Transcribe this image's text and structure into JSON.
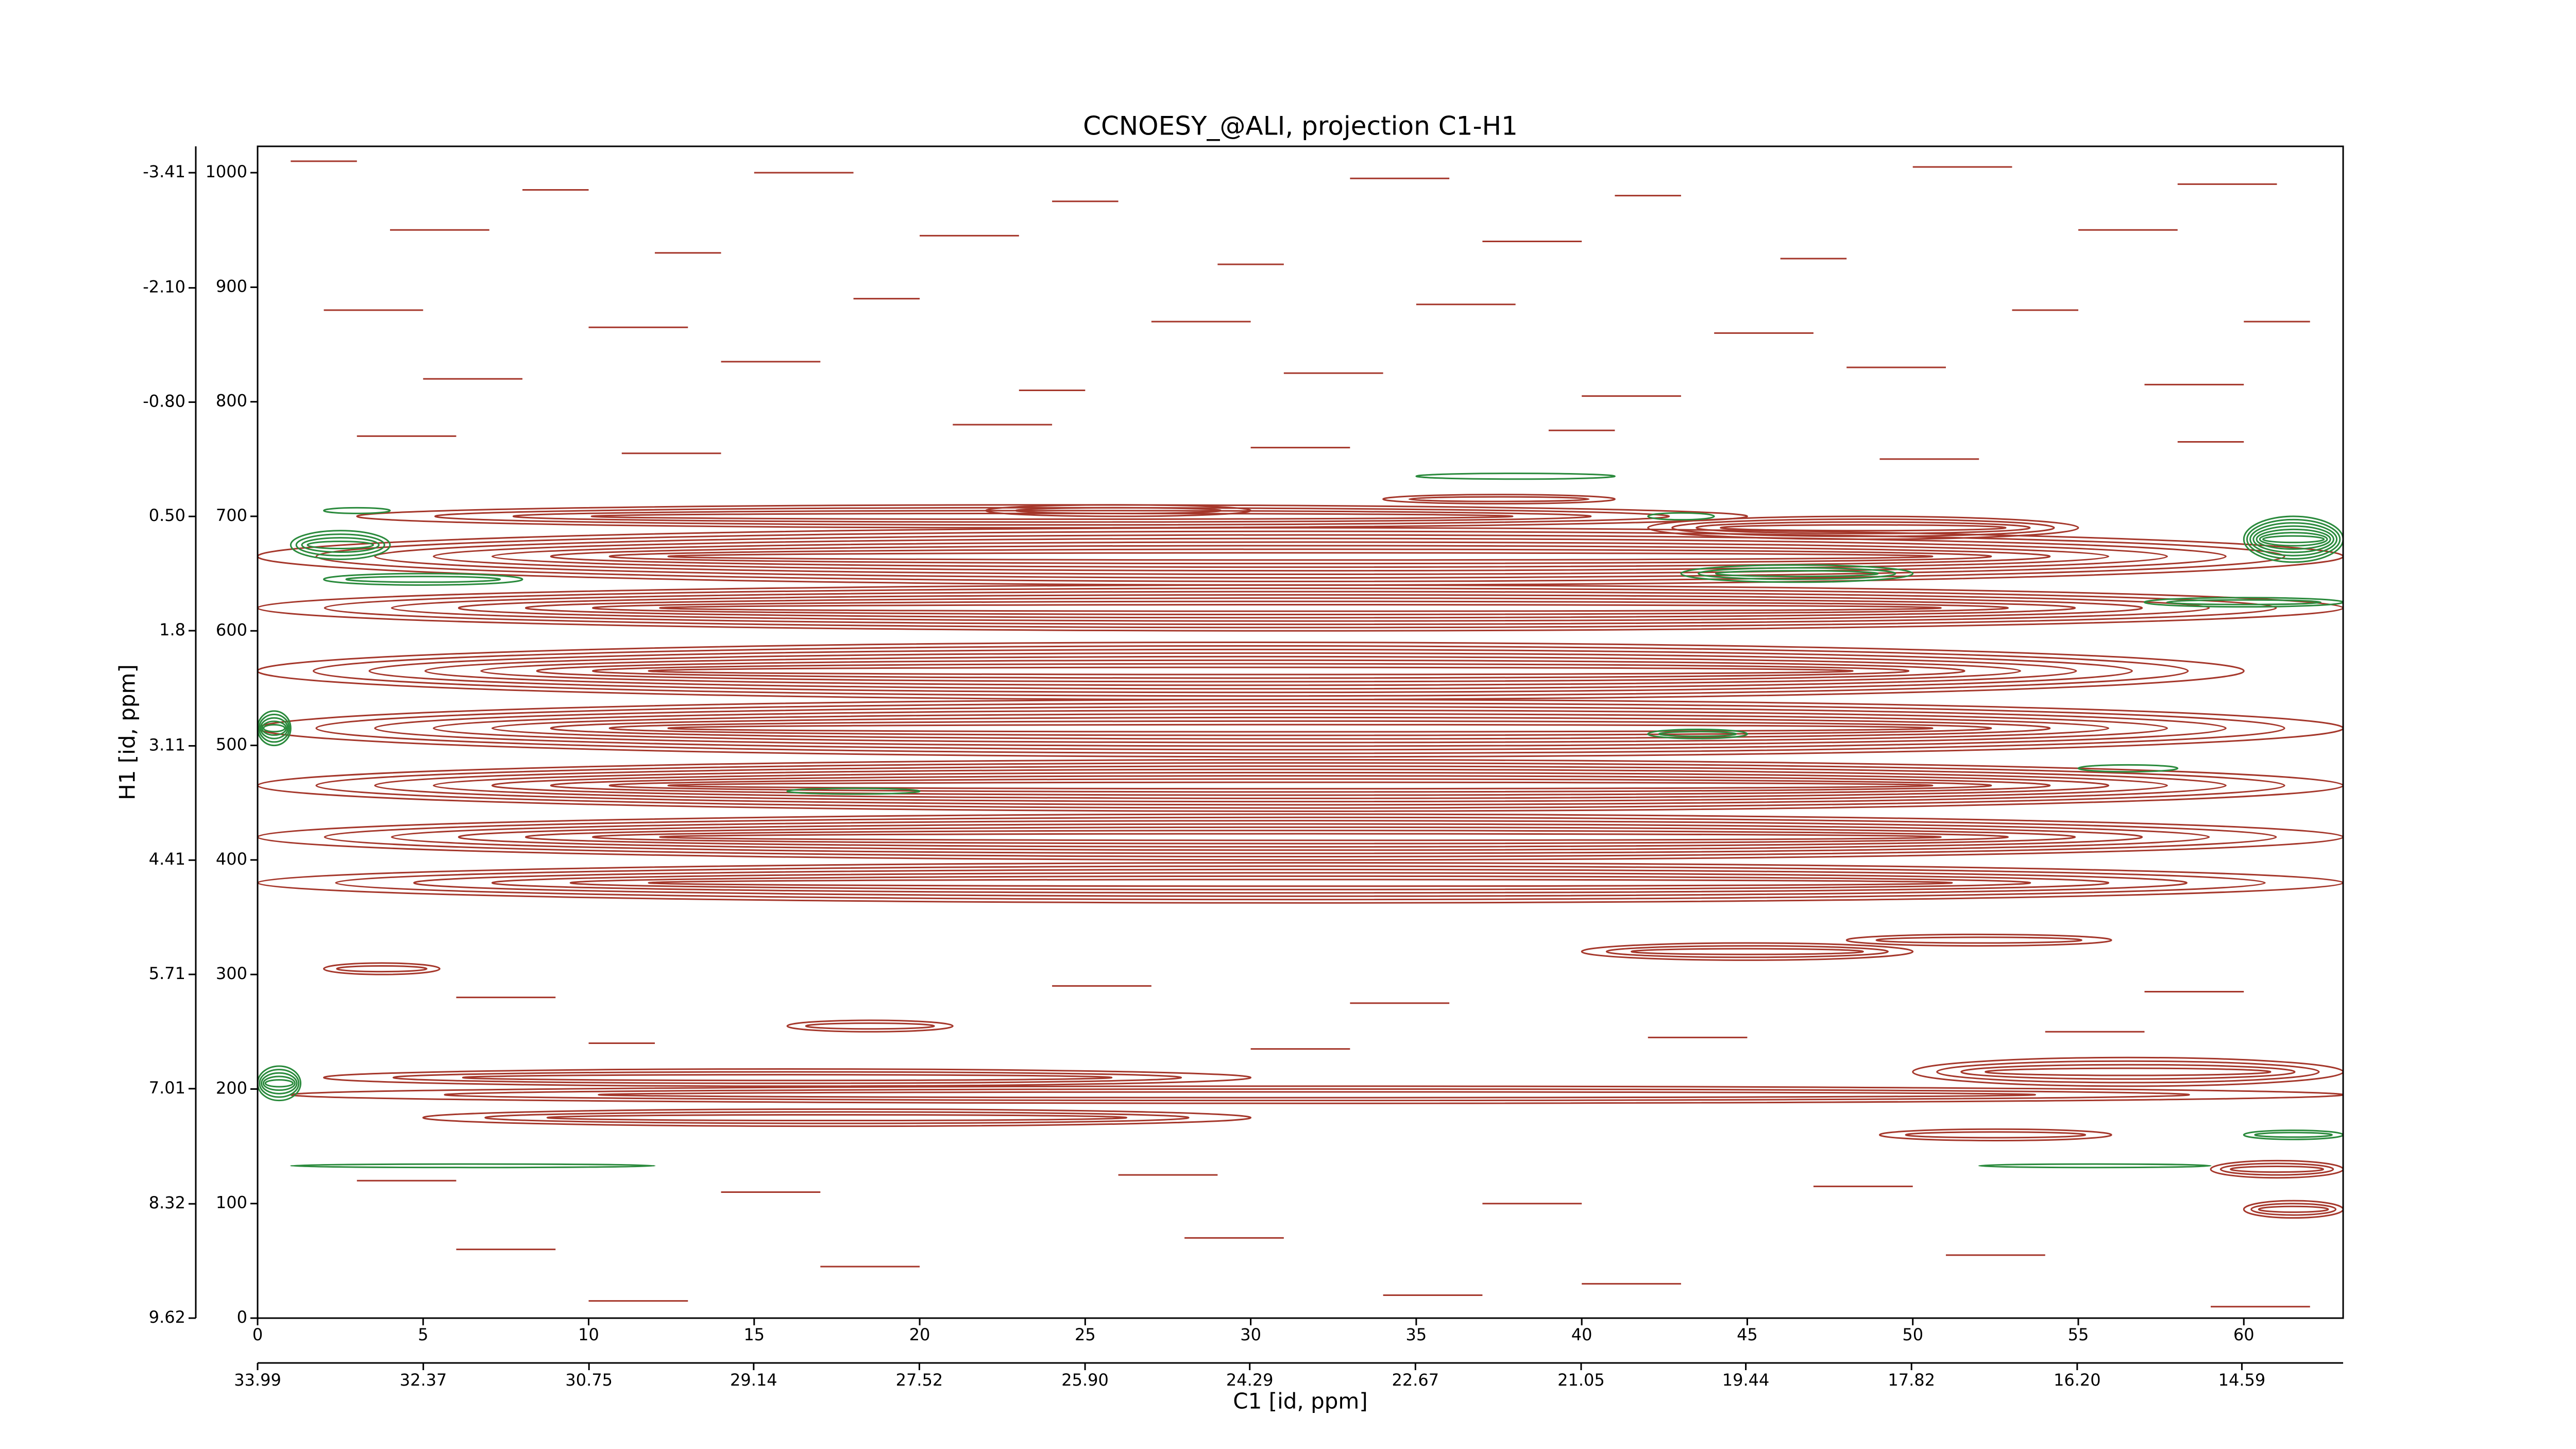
{
  "chart_data": {
    "type": "contour",
    "title": "CCNOESY_@ALI, projection C1-H1",
    "xlabel": "C1 [id, ppm]",
    "ylabel": "H1 [id, ppm]",
    "xlim": [
      0,
      63
    ],
    "xticks": [
      0,
      5,
      10,
      15,
      20,
      25,
      30,
      35,
      40,
      45,
      50,
      55,
      60
    ],
    "x2lim": [
      33.99,
      13.6
    ],
    "x2ticks": [
      33.99,
      32.37,
      30.75,
      29.14,
      27.52,
      {
        "value": 25.9,
        "label": "25.90"
      },
      24.29,
      22.67,
      21.05,
      19.44,
      17.82,
      {
        "value": 16.2,
        "label": "16.20"
      },
      14.59
    ],
    "ylim": [
      0,
      1023
    ],
    "yticks": [
      0,
      100,
      200,
      300,
      400,
      500,
      600,
      700,
      800,
      900,
      1000
    ],
    "y2lim": [
      9.62,
      -3.71
    ],
    "y2ticks": [
      9.62,
      8.32,
      7.01,
      5.71,
      4.41,
      3.11,
      1.8,
      {
        "value": 0.5,
        "label": "0.50"
      },
      {
        "value": -0.8,
        "label": "-0.80"
      },
      {
        "value": -2.1,
        "label": "-2.10"
      },
      -3.41
    ],
    "contours": [
      {
        "color": "#a5372b",
        "x0": [
          3,
          0,
          42,
          0,
          0,
          0,
          0,
          0,
          0,
          2,
          40,
          48,
          16,
          2,
          50,
          1,
          5,
          49,
          59,
          60,
          22,
          34,
          1,
          8,
          15,
          24,
          33,
          41,
          50,
          58,
          4,
          12,
          20,
          29,
          37,
          46,
          55,
          2,
          10,
          18,
          27,
          35,
          44,
          53,
          60,
          5,
          14,
          23,
          31,
          40,
          48,
          57,
          3,
          11,
          21,
          30,
          39,
          49,
          58,
          6,
          24,
          33,
          57,
          10,
          30,
          42,
          54,
          3,
          14,
          26,
          37,
          47,
          6,
          17,
          28,
          40,
          51,
          10,
          34,
          59
        ],
        "x1": [
          45,
          63,
          55,
          63,
          60,
          63,
          63,
          63,
          63,
          5.5,
          50,
          56,
          21,
          30,
          63,
          63,
          30,
          56,
          63,
          63,
          30,
          41,
          3,
          10,
          18,
          26,
          36,
          43,
          53,
          61,
          7,
          14,
          23,
          31,
          40,
          48,
          58,
          5,
          13,
          20,
          30,
          38,
          47,
          55,
          62,
          8,
          17,
          25,
          34,
          43,
          51,
          60,
          6,
          14,
          24,
          33,
          41,
          52,
          60,
          9,
          27,
          36,
          60,
          12,
          33,
          45,
          57,
          6,
          17,
          29,
          40,
          50,
          9,
          20,
          31,
          43,
          54,
          13,
          37,
          62
        ],
        "y": [
          700,
          665,
          690,
          620,
          565,
          515,
          465,
          420,
          380,
          305,
          320,
          330,
          255,
          210,
          215,
          195,
          175,
          160,
          130,
          95,
          705,
          715,
          1010,
          985,
          1000,
          975,
          995,
          980,
          1005,
          990,
          950,
          930,
          945,
          920,
          940,
          925,
          950,
          880,
          865,
          890,
          870,
          885,
          860,
          880,
          870,
          820,
          835,
          810,
          825,
          805,
          830,
          815,
          770,
          755,
          780,
          760,
          775,
          750,
          765,
          280,
          290,
          275,
          285,
          240,
          235,
          245,
          250,
          120,
          110,
          125,
          100,
          115,
          60,
          45,
          70,
          30,
          55,
          15,
          20,
          10
        ],
        "h": [
          20,
          50,
          20,
          40,
          50,
          50,
          45,
          40,
          35,
          10,
          15,
          10,
          10,
          15,
          25,
          15,
          15,
          10,
          15,
          15,
          10,
          8,
          0,
          0,
          0,
          0,
          0,
          0,
          0,
          0,
          0,
          0,
          0,
          0,
          0,
          0,
          0,
          0,
          0,
          0,
          0,
          0,
          0,
          0,
          0,
          0,
          0,
          0,
          0,
          0,
          0,
          0,
          0,
          0,
          0,
          0,
          0,
          0,
          0,
          0,
          0,
          0,
          0,
          0,
          0,
          0,
          0,
          0,
          0,
          0,
          0,
          0,
          0,
          0,
          0,
          0,
          0,
          0,
          0,
          0
        ]
      },
      {
        "color": "#2a8a3c",
        "x0": [
          1,
          2,
          2,
          43,
          60,
          57,
          42,
          0,
          0,
          1,
          52,
          60,
          16,
          35,
          42,
          55
        ],
        "x1": [
          4,
          8,
          4,
          50,
          63,
          63,
          45,
          1,
          1.3,
          12,
          59,
          63,
          20,
          41,
          44,
          58
        ],
        "y": [
          675,
          645,
          705,
          650,
          680,
          625,
          510,
          515,
          205,
          133,
          133,
          160,
          460,
          735,
          700,
          480
        ],
        "h": [
          25,
          10,
          5,
          15,
          40,
          8,
          8,
          30,
          30,
          3,
          3,
          8,
          5,
          5,
          6,
          6
        ]
      }
    ]
  }
}
